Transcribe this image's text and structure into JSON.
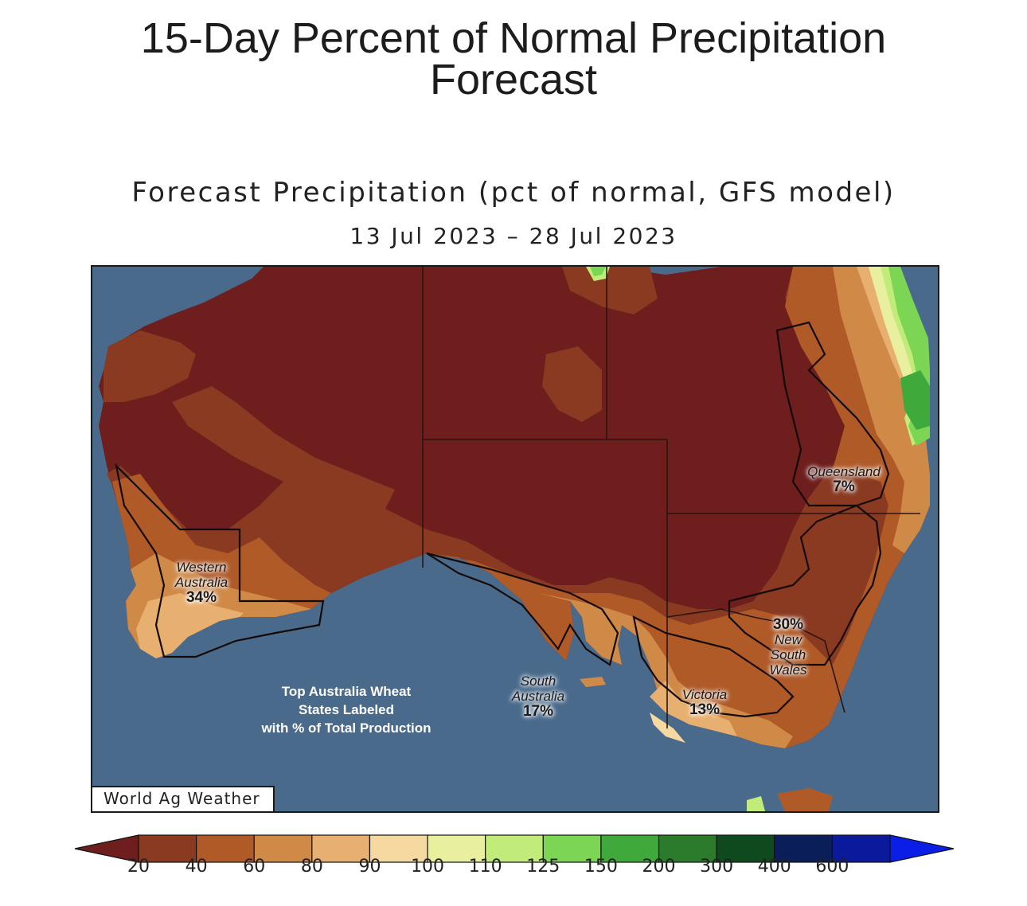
{
  "header": {
    "title_line1": "15-Day Percent of Normal Precipitation",
    "title_line2": "Forecast"
  },
  "map": {
    "title": "Forecast Precipitation (pct of normal, GFS model)",
    "date_range": "13 Jul 2023 – 28 Jul 2023",
    "credit": "World Ag Weather",
    "note": [
      "Top Australia Wheat",
      "States Labeled",
      "with % of Total Production"
    ],
    "ocean_color": "#4a6a8c",
    "states": {
      "western_australia": {
        "name_line1": "Western",
        "name_line2": "Australia",
        "percent": "34%"
      },
      "south_australia": {
        "name_line1": "South",
        "name_line2": "Australia",
        "percent": "17%"
      },
      "victoria": {
        "name": "Victoria",
        "percent": "13%"
      },
      "new_south_wales": {
        "percent": "30%",
        "name_line1": "New",
        "name_line2": "South",
        "name_line3": "Wales"
      },
      "queensland": {
        "name": "Queensland",
        "percent": "7%"
      }
    }
  },
  "legend": {
    "ticks": [
      "20",
      "40",
      "60",
      "80",
      "90",
      "100",
      "110",
      "125",
      "150",
      "200",
      "300",
      "400",
      "600"
    ],
    "colors": [
      "#6e1e1c",
      "#8a3a20",
      "#b05a28",
      "#d08a48",
      "#e8b070",
      "#f5d9a0",
      "#e8f0a0",
      "#c2ec7a",
      "#7cd653",
      "#3fa93c",
      "#2c7a2c",
      "#0e4a1e",
      "#0a1e5a",
      "#0a1a9a",
      "#0a1ee6"
    ]
  }
}
